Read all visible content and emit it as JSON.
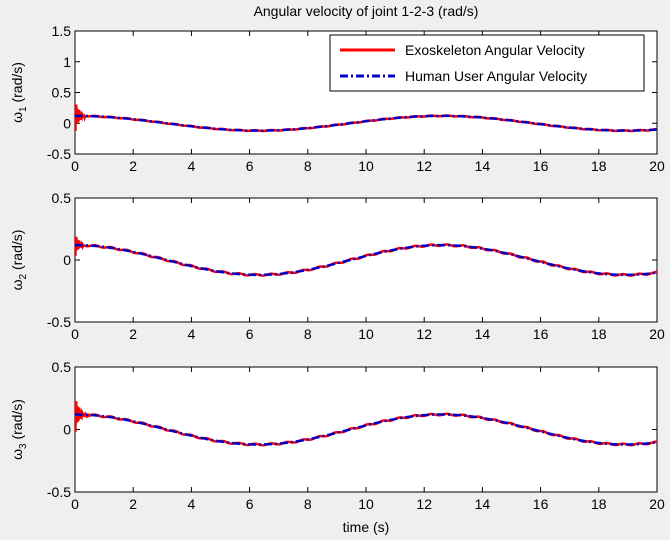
{
  "figure": {
    "title": "Angular velocity of joint 1-2-3 (rad/s)",
    "xlabel": "time (s)",
    "background": "#efefef"
  },
  "legend": {
    "placement": "top-right",
    "entries": [
      {
        "label": "Exoskeleton Angular Velocity",
        "color": "#ff0000",
        "style": "solid"
      },
      {
        "label": "Human User Angular Velocity",
        "color": "#0000cc",
        "style": "dash-dot"
      }
    ]
  },
  "chart_data": [
    {
      "type": "line",
      "subplot": 1,
      "ylabel": {
        "symbol": "ω",
        "sub": "1",
        "unit": " (rad/s)"
      },
      "xlim": [
        0,
        20
      ],
      "ylim": [
        -0.5,
        1.5
      ],
      "xticks": [
        0,
        2,
        4,
        6,
        8,
        10,
        12,
        14,
        16,
        18,
        20
      ],
      "yticks": [
        -0.5,
        0,
        0.5,
        1,
        1.5
      ],
      "ytick_labels": [
        "-0.5",
        "0",
        "0.5",
        "1",
        "1.5"
      ],
      "grid": false,
      "series": [
        {
          "name": "Exoskeleton Angular Velocity",
          "amplitude": 0.12,
          "period_s": 12.6,
          "initial_value": 0.12,
          "start_transient_peak": 0.4,
          "start_transient_until_s": 0.35
        },
        {
          "name": "Human User Angular Velocity",
          "amplitude": 0.12,
          "period_s": 12.6,
          "initial_value": 0.12
        }
      ]
    },
    {
      "type": "line",
      "subplot": 2,
      "ylabel": {
        "symbol": "ω",
        "sub": "2",
        "unit": " (rad/s)"
      },
      "xlim": [
        0,
        20
      ],
      "ylim": [
        -0.5,
        0.5
      ],
      "xticks": [
        0,
        2,
        4,
        6,
        8,
        10,
        12,
        14,
        16,
        18,
        20
      ],
      "yticks": [
        -0.5,
        0,
        0.5
      ],
      "ytick_labels": [
        "-0.5",
        "0",
        "0.5"
      ],
      "grid": false,
      "series": [
        {
          "name": "Exoskeleton Angular Velocity",
          "amplitude": 0.12,
          "period_s": 12.6,
          "initial_value": 0.13,
          "start_transient_peak": 0.23,
          "start_transient_until_s": 0.3
        },
        {
          "name": "Human User Angular Velocity",
          "amplitude": 0.12,
          "period_s": 12.6,
          "initial_value": 0.12
        }
      ]
    },
    {
      "type": "line",
      "subplot": 3,
      "ylabel": {
        "symbol": "ω",
        "sub": "3",
        "unit": " (rad/s)"
      },
      "xlim": [
        0,
        20
      ],
      "ylim": [
        -0.5,
        0.5
      ],
      "xticks": [
        0,
        2,
        4,
        6,
        8,
        10,
        12,
        14,
        16,
        18,
        20
      ],
      "yticks": [
        -0.5,
        0,
        0.5
      ],
      "ytick_labels": [
        "-0.5",
        "0",
        "0.5"
      ],
      "grid": false,
      "series": [
        {
          "name": "Exoskeleton Angular Velocity",
          "amplitude": 0.12,
          "period_s": 12.6,
          "initial_value": 0.12,
          "start_transient_peak": 0.28,
          "start_transient_until_s": 0.6
        },
        {
          "name": "Human User Angular Velocity",
          "amplitude": 0.12,
          "period_s": 12.6,
          "initial_value": 0.12
        }
      ]
    }
  ]
}
